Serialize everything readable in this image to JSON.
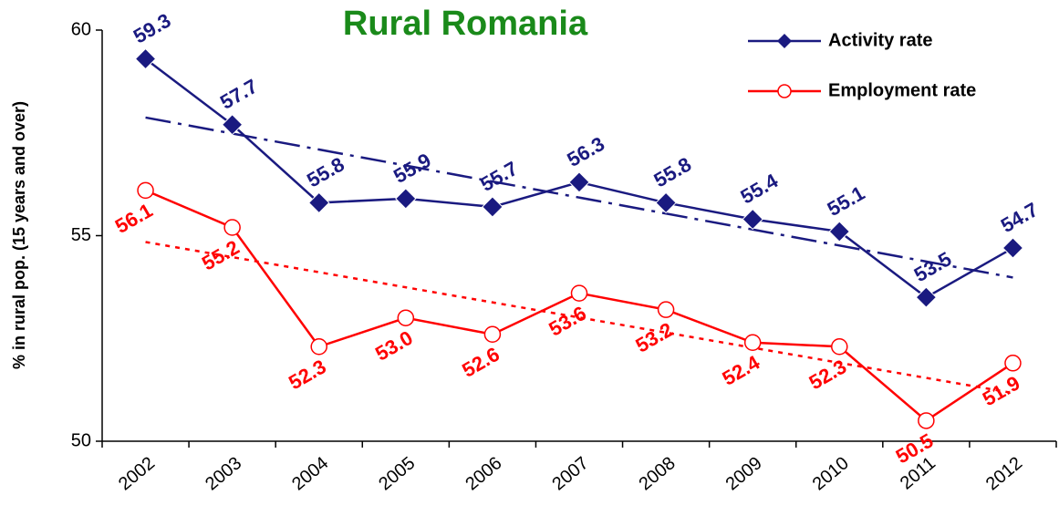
{
  "chart_data": {
    "type": "line",
    "title": "Rural Romania",
    "y_label": "% in rural pop. (15 years and over)",
    "categories": [
      "2002",
      "2003",
      "2004",
      "2005",
      "2006",
      "2007",
      "2008",
      "2009",
      "2010",
      "2011",
      "2012"
    ],
    "ylim": [
      50,
      60
    ],
    "yticks": [
      50,
      55,
      60
    ],
    "legend": "top-right",
    "series": [
      {
        "name": "Activity rate",
        "color": "#1a1a80",
        "marker": "diamond",
        "trend": "dash-dot",
        "values": [
          59.3,
          57.7,
          55.8,
          55.9,
          55.7,
          56.3,
          55.8,
          55.4,
          55.1,
          53.5,
          54.7
        ],
        "value_labels": [
          "59.3",
          "57.7",
          "55.8",
          "55.9",
          "55.7",
          "56.3",
          "55.8",
          "55.4",
          "55.1",
          "53.5",
          "54.7"
        ]
      },
      {
        "name": "Employment rate",
        "color": "#ff0000",
        "marker": "circle",
        "trend": "dotted",
        "values": [
          56.1,
          55.2,
          52.3,
          53.0,
          52.6,
          53.6,
          53.2,
          52.4,
          52.3,
          50.5,
          51.9
        ],
        "value_labels": [
          "56.1",
          "55.2",
          "52.3",
          "53.0",
          "52.6",
          "53.6",
          "53.2",
          "52.4",
          "52.3",
          "50.5",
          "51.9"
        ]
      }
    ]
  }
}
